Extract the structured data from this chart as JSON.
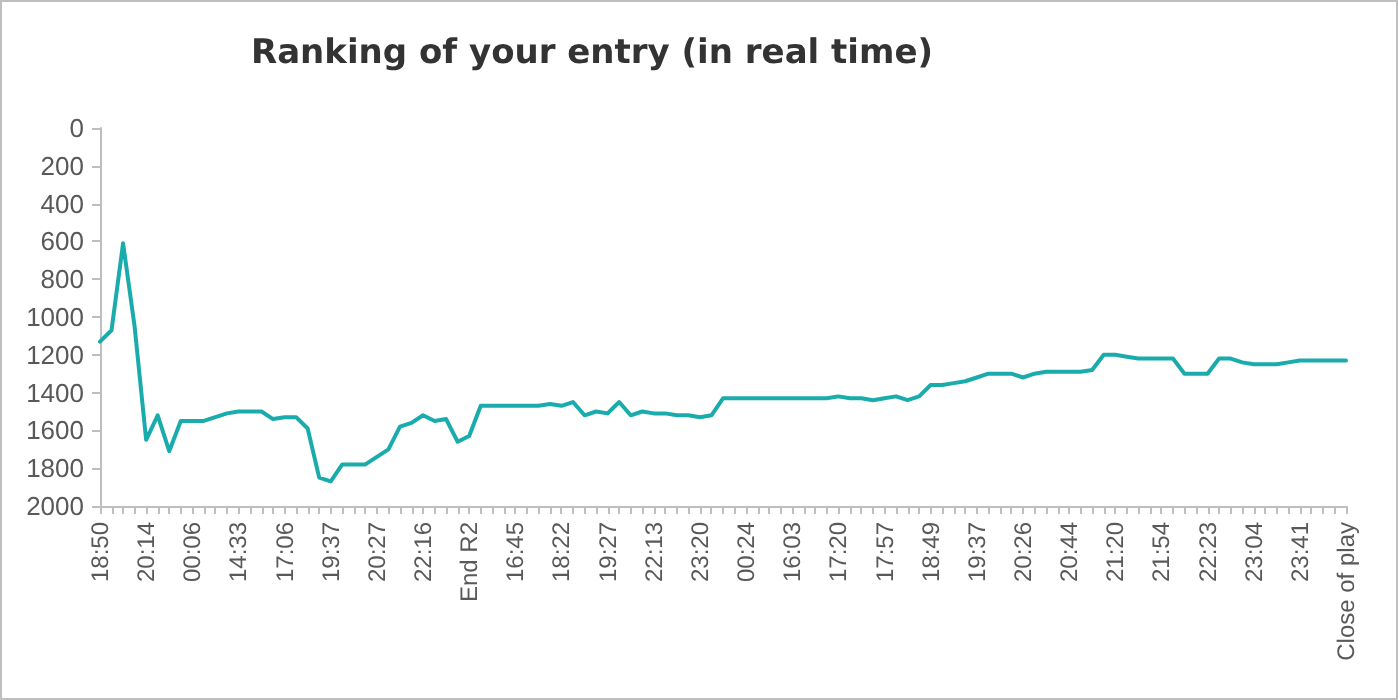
{
  "chart_data": {
    "type": "line",
    "title": "Ranking of your entry (in real time)",
    "categories": [
      "18:50",
      null,
      null,
      null,
      "20:14",
      null,
      null,
      null,
      "00:06",
      null,
      null,
      null,
      "14:33",
      null,
      null,
      null,
      "17:06",
      null,
      null,
      null,
      "19:37",
      null,
      null,
      null,
      "20:27",
      null,
      null,
      null,
      "22:16",
      null,
      null,
      null,
      "End R2",
      null,
      null,
      null,
      "16:45",
      null,
      null,
      null,
      "18:22",
      null,
      null,
      null,
      "19:27",
      null,
      null,
      null,
      "22:13",
      null,
      null,
      null,
      "23:20",
      null,
      null,
      null,
      "00:24",
      null,
      null,
      null,
      "16:03",
      null,
      null,
      null,
      "17:20",
      null,
      null,
      null,
      "17:57",
      null,
      null,
      null,
      "18:49",
      null,
      null,
      null,
      "19:37",
      null,
      null,
      null,
      "20:26",
      null,
      null,
      null,
      "20:44",
      null,
      null,
      null,
      "21:20",
      null,
      null,
      null,
      "21:54",
      null,
      null,
      null,
      "22:23",
      null,
      null,
      null,
      "23:04",
      null,
      null,
      null,
      "23:41",
      null,
      null,
      null,
      "Close of play"
    ],
    "series": [
      {
        "color": "#1aacac",
        "values": [
          1130,
          1070,
          610,
          1050,
          1650,
          1520,
          1710,
          1550,
          1550,
          1550,
          1530,
          1510,
          1500,
          1500,
          1500,
          1540,
          1530,
          1530,
          1590,
          1850,
          1870,
          1780,
          1780,
          1780,
          1740,
          1700,
          1580,
          1560,
          1520,
          1550,
          1540,
          1660,
          1630,
          1470,
          1470,
          1470,
          1470,
          1470,
          1470,
          1460,
          1470,
          1450,
          1520,
          1500,
          1510,
          1450,
          1520,
          1500,
          1510,
          1510,
          1520,
          1520,
          1530,
          1520,
          1430,
          1430,
          1430,
          1430,
          1430,
          1430,
          1430,
          1430,
          1430,
          1430,
          1420,
          1430,
          1430,
          1440,
          1430,
          1420,
          1440,
          1420,
          1360,
          1360,
          1350,
          1340,
          1320,
          1300,
          1300,
          1300,
          1320,
          1300,
          1290,
          1290,
          1290,
          1290,
          1280,
          1200,
          1200,
          1210,
          1220,
          1220,
          1220,
          1220,
          1300,
          1300,
          1300,
          1220,
          1220,
          1240,
          1250,
          1250,
          1250,
          1240,
          1230,
          1230,
          1230,
          1230,
          1230
        ]
      }
    ],
    "ylim": [
      2000,
      0
    ],
    "yticks": [
      0,
      200,
      400,
      600,
      800,
      1000,
      1200,
      1400,
      1600,
      1800,
      2000
    ],
    "marker": "none",
    "line_style": "solid"
  }
}
